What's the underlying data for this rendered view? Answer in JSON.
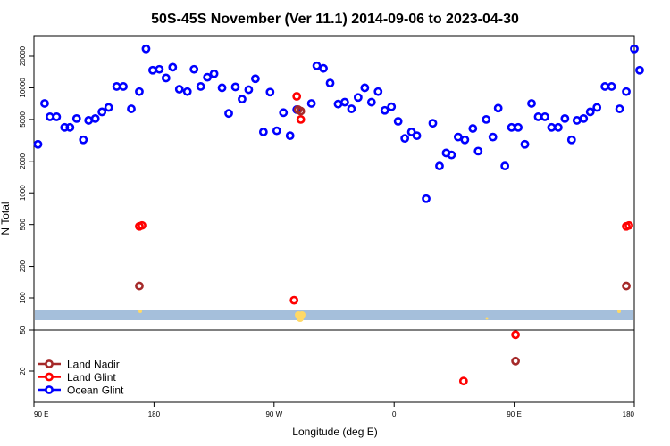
{
  "chart_data": {
    "type": "scatter",
    "title": "50S-45S November (Ver 11.1)   2014-09-06 to 2023-04-30",
    "xlabel": "Longitude (deg E)",
    "ylabel": "N Total",
    "x_axis": {
      "ticks": [
        {
          "value": 90,
          "label": "90 E"
        },
        {
          "value": 180,
          "label": "180"
        },
        {
          "value": 270,
          "label": "90 W"
        },
        {
          "value": 360,
          "label": "0"
        },
        {
          "value": 450,
          "label": "90 E"
        },
        {
          "value": 540,
          "label": "180"
        }
      ],
      "range": [
        90,
        540
      ]
    },
    "y_axis_upper": {
      "scale": "log",
      "ticks": [
        {
          "value": 100,
          "label": "100"
        },
        {
          "value": 200,
          "label": "200"
        },
        {
          "value": 500,
          "label": "500"
        },
        {
          "value": 1000,
          "label": "1000"
        },
        {
          "value": 2000,
          "label": "2000"
        },
        {
          "value": 5000,
          "label": "5000"
        },
        {
          "value": 10000,
          "label": "10000"
        },
        {
          "value": 20000,
          "label": "20000"
        }
      ]
    },
    "y_axis_lower": {
      "scale": "log",
      "ticks": [
        {
          "value": 50,
          "label": "50"
        },
        {
          "value": 20,
          "label": "20"
        }
      ]
    },
    "legend": {
      "placement": "bottom-left",
      "entries": [
        {
          "name": "Land Nadir",
          "color": "#a52a2a"
        },
        {
          "name": "Land Glint",
          "color": "#ff0000"
        },
        {
          "name": "Ocean Glint",
          "color": "#0000ff"
        }
      ]
    },
    "band_color": "#a5bfdb",
    "series": [
      {
        "name": "Ocean Glint",
        "color": "#0000ff",
        "points": [
          [
            93,
            2900
          ],
          [
            98,
            7100
          ],
          [
            102,
            5300
          ],
          [
            107,
            5300
          ],
          [
            113,
            4200
          ],
          [
            117,
            4200
          ],
          [
            122,
            5100
          ],
          [
            127,
            3200
          ],
          [
            131,
            4900
          ],
          [
            136,
            5100
          ],
          [
            141,
            5900
          ],
          [
            146,
            6500
          ],
          [
            152,
            10300
          ],
          [
            157,
            10300
          ],
          [
            163,
            6300
          ],
          [
            169,
            9200
          ],
          [
            174,
            23500
          ],
          [
            179,
            14700
          ],
          [
            184,
            15000
          ],
          [
            189,
            12400
          ],
          [
            194,
            15700
          ],
          [
            199,
            9700
          ],
          [
            205,
            9200
          ],
          [
            210,
            15000
          ],
          [
            215,
            10300
          ],
          [
            220,
            12600
          ],
          [
            225,
            13600
          ],
          [
            231,
            10000
          ],
          [
            236,
            5700
          ],
          [
            241,
            10200
          ],
          [
            246,
            7800
          ],
          [
            251,
            9600
          ],
          [
            256,
            12200
          ],
          [
            262,
            3800
          ],
          [
            267,
            9100
          ],
          [
            272,
            3900
          ],
          [
            277,
            5800
          ],
          [
            282,
            3500
          ],
          [
            287,
            6200
          ],
          [
            298,
            7100
          ],
          [
            302,
            16200
          ],
          [
            307,
            15300
          ],
          [
            312,
            11100
          ],
          [
            318,
            7000
          ],
          [
            323,
            7300
          ],
          [
            328,
            6300
          ],
          [
            333,
            8100
          ],
          [
            338,
            10000
          ],
          [
            343,
            7300
          ],
          [
            348,
            9200
          ],
          [
            353,
            6100
          ],
          [
            358,
            6600
          ],
          [
            363,
            4800
          ],
          [
            368,
            3300
          ],
          [
            373,
            3800
          ],
          [
            377,
            3500
          ],
          [
            384,
            880
          ],
          [
            389,
            4600
          ],
          [
            394,
            1800
          ],
          [
            399,
            2400
          ],
          [
            403,
            2300
          ],
          [
            408,
            3400
          ],
          [
            413,
            3200
          ],
          [
            419,
            4100
          ],
          [
            423,
            2500
          ],
          [
            429,
            5000
          ],
          [
            434,
            3400
          ],
          [
            438,
            6400
          ],
          [
            443,
            1800
          ],
          [
            448,
            4200
          ],
          [
            453,
            4200
          ],
          [
            458,
            2900
          ],
          [
            463,
            7100
          ],
          [
            468,
            5300
          ],
          [
            473,
            5300
          ],
          [
            478,
            4200
          ],
          [
            483,
            4200
          ],
          [
            488,
            5100
          ],
          [
            493,
            3200
          ],
          [
            497,
            4900
          ],
          [
            502,
            5100
          ],
          [
            507,
            5900
          ],
          [
            512,
            6500
          ],
          [
            518,
            10300
          ],
          [
            523,
            10300
          ],
          [
            529,
            6300
          ],
          [
            534,
            9200
          ],
          [
            540,
            23500
          ],
          [
            544,
            14700
          ]
        ]
      },
      {
        "name": "Land Glint",
        "color": "#ff0000",
        "points": [
          [
            169,
            480
          ],
          [
            171,
            490
          ],
          [
            285,
            95
          ],
          [
            287,
            8300
          ],
          [
            290,
            5000
          ],
          [
            534,
            480
          ],
          [
            536,
            490
          ],
          [
            412,
            16
          ],
          [
            451,
            45
          ]
        ]
      },
      {
        "name": "Land Nadir",
        "color": "#a52a2a",
        "points": [
          [
            169,
            130
          ],
          [
            288,
            6200
          ],
          [
            290,
            6000
          ],
          [
            534,
            130
          ],
          [
            451,
            25
          ]
        ]
      }
    ]
  }
}
